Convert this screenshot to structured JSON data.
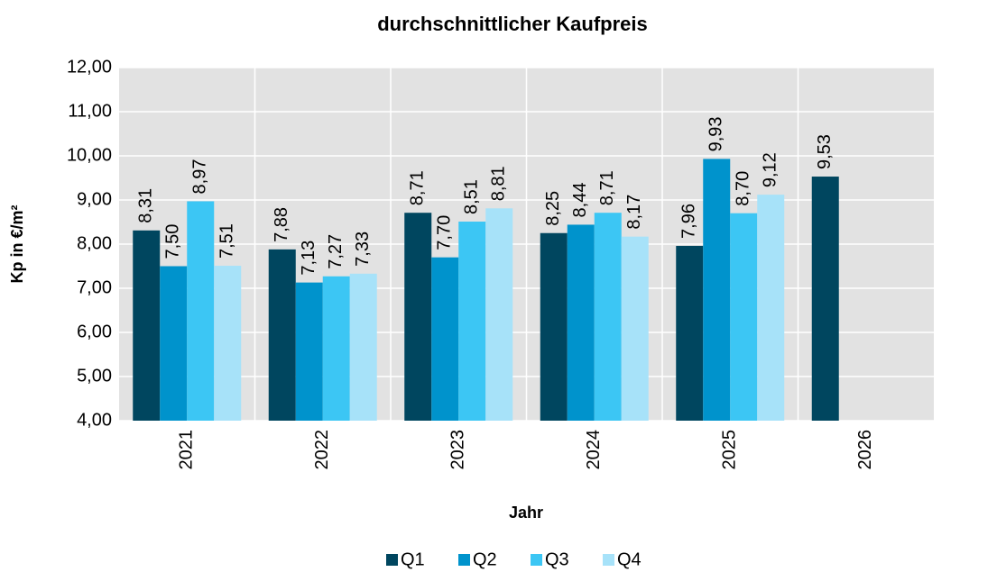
{
  "chart_data": {
    "type": "bar",
    "title": "durchschnittlicher Kaufpreis",
    "x_label": "Jahr",
    "y_label": "Kp in €/m²",
    "categories": [
      "2021",
      "2022",
      "2023",
      "2024",
      "2025",
      "2026"
    ],
    "series": [
      {
        "name": "Q1",
        "color": "#00465f",
        "values": [
          8.31,
          7.88,
          8.71,
          8.25,
          7.96,
          9.53
        ],
        "value_labels": [
          "8,31",
          "7,88",
          "8,71",
          "8,25",
          "7,96",
          "9,53"
        ]
      },
      {
        "name": "Q2",
        "color": "#0093cc",
        "values": [
          7.5,
          7.13,
          7.7,
          8.44,
          9.93,
          null
        ],
        "value_labels": [
          "7,50",
          "7,13",
          "7,70",
          "8,44",
          "9,93",
          null
        ]
      },
      {
        "name": "Q3",
        "color": "#3cc6f4",
        "values": [
          8.97,
          7.27,
          8.51,
          8.71,
          8.7,
          null
        ],
        "value_labels": [
          "8,97",
          "7,27",
          "8,51",
          "8,71",
          "8,70",
          null
        ]
      },
      {
        "name": "Q4",
        "color": "#a7e2f9",
        "values": [
          7.51,
          7.33,
          8.81,
          8.17,
          9.12,
          null
        ],
        "value_labels": [
          "7,51",
          "7,33",
          "8,81",
          "8,17",
          "9,12",
          null
        ]
      }
    ],
    "ylim": [
      4,
      12
    ],
    "yticks": [
      {
        "value": 4,
        "label": "4,00"
      },
      {
        "value": 5,
        "label": "5,00"
      },
      {
        "value": 6,
        "label": "6,00"
      },
      {
        "value": 7,
        "label": "7,00"
      },
      {
        "value": 8,
        "label": "8,00"
      },
      {
        "value": 9,
        "label": "9,00"
      },
      {
        "value": 10,
        "label": "10,00"
      },
      {
        "value": 11,
        "label": "11,00"
      },
      {
        "value": 12,
        "label": "12,00"
      }
    ],
    "grid": true,
    "legend": "bottom"
  }
}
